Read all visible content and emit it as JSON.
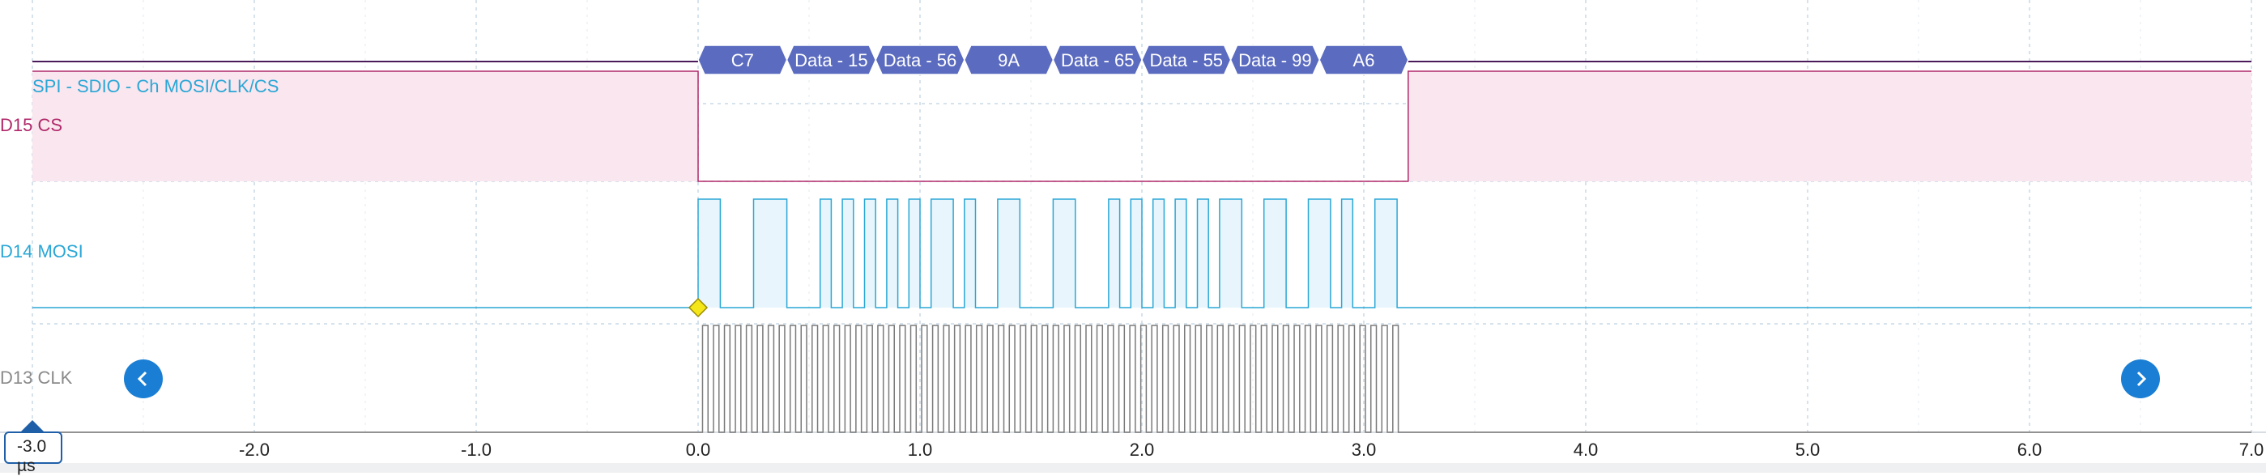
{
  "protocol_label": "SPI - SDIO - Ch MOSI/CLK/CS",
  "channels": [
    {
      "id": "cs",
      "label": "D15 CS",
      "color": "#b0286a"
    },
    {
      "id": "mosi",
      "label": "D14 MOSI",
      "color": "#2aa7d6"
    },
    {
      "id": "clk",
      "label": "D13 CLK",
      "color": "#8a8a8a"
    }
  ],
  "decode_frames": [
    "C7",
    "Data - 15",
    "Data - 56",
    "9A",
    "Data - 65",
    "Data - 55",
    "Data - 99",
    "A6"
  ],
  "time_axis": {
    "unit": "µs",
    "cursor_label": "-3.0 µs",
    "ticks": [
      "-2.0",
      "-1.0",
      "0.0",
      "1.0",
      "2.0",
      "3.0",
      "4.0",
      "5.0",
      "6.0",
      "7.0"
    ]
  },
  "colors": {
    "frame_fill": "#5b6bbf",
    "cs_shade": "#f9e6ee",
    "mosi_fill": "#e8f5fc",
    "grid": "#c9d8e6",
    "trigger": "#f5e61a",
    "nav": "#1a7fd4",
    "cursor": "#1f5fa8"
  },
  "icons": {
    "prev": "chevron-left-icon",
    "next": "chevron-right-icon",
    "trigger": "trigger-diamond-icon"
  }
}
